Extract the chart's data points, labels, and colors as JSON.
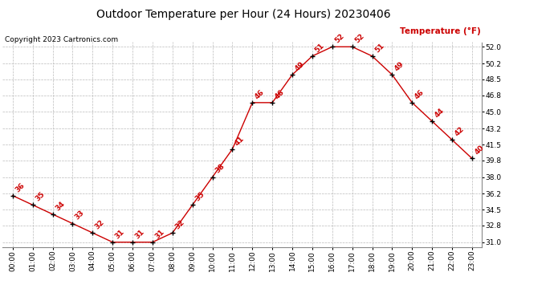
{
  "title": "Outdoor Temperature per Hour (24 Hours) 20230406",
  "copyright": "Copyright 2023 Cartronics.com",
  "legend_label": "Temperature (°F)",
  "hours": [
    0,
    1,
    2,
    3,
    4,
    5,
    6,
    7,
    8,
    9,
    10,
    11,
    12,
    13,
    14,
    15,
    16,
    17,
    18,
    19,
    20,
    21,
    22,
    23
  ],
  "temps": [
    36,
    35,
    34,
    33,
    32,
    31,
    31,
    31,
    32,
    35,
    38,
    41,
    46,
    46,
    49,
    51,
    52,
    52,
    51,
    49,
    46,
    44,
    42,
    40
  ],
  "xlabels": [
    "00:00",
    "01:00",
    "02:00",
    "03:00",
    "04:00",
    "05:00",
    "06:00",
    "07:00",
    "08:00",
    "09:00",
    "10:00",
    "11:00",
    "12:00",
    "13:00",
    "14:00",
    "15:00",
    "16:00",
    "17:00",
    "18:00",
    "19:00",
    "20:00",
    "21:00",
    "22:00",
    "23:00"
  ],
  "ylim": [
    30.5,
    52.5
  ],
  "yticks": [
    31.0,
    32.8,
    34.5,
    36.2,
    38.0,
    39.8,
    41.5,
    43.2,
    45.0,
    46.8,
    48.5,
    50.2,
    52.0
  ],
  "line_color": "#cc0000",
  "marker_color": "#000000",
  "grid_color": "#bbbbbb",
  "bg_color": "#ffffff",
  "title_fontsize": 10,
  "copyright_fontsize": 6.5,
  "tick_fontsize": 6.5,
  "annotation_fontsize": 6.5,
  "legend_fontsize": 7.5,
  "legend_color": "#cc0000"
}
